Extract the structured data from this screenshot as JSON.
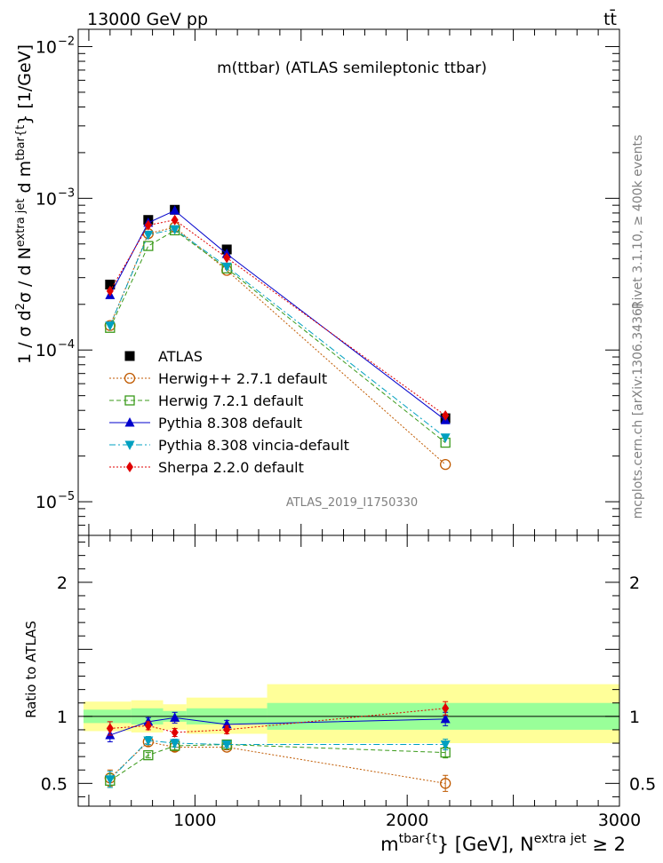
{
  "header": {
    "left": "13000 GeV pp",
    "right": "tt̄"
  },
  "side_labels": {
    "rivet": "Rivet 3.1.10, ≥ 400k events",
    "mcplots": "mcplots.cern.ch [arXiv:1306.3436]"
  },
  "analysis_id": "ATLAS_2019_I1750330",
  "chart_data": [
    {
      "type": "line",
      "panel": "main",
      "title": "m(ttbar) (ATLAS semileptonic ttbar)",
      "ylabel": {
        "a": "1 / σ d",
        "a_sup": "2",
        "b": "σ / d N",
        "b_sup": "extra jet",
        "c": " d m",
        "c_sup": "tbar{t",
        "d": "} [1/GeV]"
      },
      "yscale": "log",
      "xlim": [
        450,
        3000
      ],
      "ylim": [
        6e-06,
        0.013
      ],
      "ytick_labels": [
        {
          "value": 1e-05,
          "base": "10",
          "exp": "−5"
        },
        {
          "value": 0.0001,
          "base": "10",
          "exp": "−4"
        },
        {
          "value": 0.001,
          "base": "10",
          "exp": "−3"
        },
        {
          "value": 0.01,
          "base": "10",
          "exp": "−2"
        }
      ],
      "x": [
        600,
        780,
        905,
        1150,
        2180
      ],
      "bin_edges": [
        475,
        700,
        850,
        960,
        1340,
        3000
      ],
      "series": [
        {
          "name": "ATLAS",
          "style": "data",
          "color": "#000000",
          "marker": "square-filled",
          "values": [
            0.00027,
            0.00072,
            0.00084,
            0.00046,
            3.55e-05
          ]
        },
        {
          "name": "Herwig++ 2.7.1 default",
          "style": "dotted",
          "color": "#c05a00",
          "marker": "circle-open",
          "values": [
            0.000145,
            0.000585,
            0.000645,
            0.000335,
            1.76e-05
          ]
        },
        {
          "name": "Herwig 7.2.1 default",
          "style": "dashed",
          "color": "#3a9a1a",
          "marker": "square-open",
          "values": [
            0.00014,
            0.000485,
            0.000615,
            0.000345,
            2.45e-05
          ]
        },
        {
          "name": "Pythia 8.308 default",
          "style": "solid",
          "color": "#0000cc",
          "marker": "triangle-up",
          "values": [
            0.00023,
            0.00069,
            0.00083,
            0.00043,
            3.45e-05
          ]
        },
        {
          "name": "Pythia 8.308 vincia-default",
          "style": "dashdot",
          "color": "#00a0c0",
          "marker": "triangle-down",
          "values": [
            0.000145,
            0.000575,
            0.000625,
            0.000355,
            2.65e-05
          ]
        },
        {
          "name": "Sherpa 2.2.0 default",
          "style": "dotted",
          "color": "#e00000",
          "marker": "diamond",
          "values": [
            0.000245,
            0.000665,
            0.00072,
            0.000405,
            3.7e-05
          ]
        }
      ]
    },
    {
      "type": "line",
      "panel": "ratio",
      "ylabel": "Ratio to ATLAS",
      "xlabel": {
        "a": "m",
        "a_sup": "tbar{t",
        "b": "} [GeV], N",
        "b_sup": "extra jet",
        "c": " ≥ 2"
      },
      "xlim": [
        450,
        3000
      ],
      "ylim": [
        0.33,
        2.35
      ],
      "xtick_labels": [
        1000,
        2000,
        3000
      ],
      "ytick_labels": [
        0.5,
        1,
        2
      ],
      "x": [
        600,
        780,
        905,
        1150,
        2180
      ],
      "bands": [
        {
          "x0": 475,
          "x1": 700,
          "inner": [
            0.95,
            1.05
          ],
          "outer": [
            0.89,
            1.11
          ]
        },
        {
          "x0": 700,
          "x1": 850,
          "inner": [
            0.94,
            1.06
          ],
          "outer": [
            0.88,
            1.12
          ]
        },
        {
          "x0": 850,
          "x1": 960,
          "inner": [
            0.96,
            1.04
          ],
          "outer": [
            0.9,
            1.09
          ]
        },
        {
          "x0": 960,
          "x1": 1340,
          "inner": [
            0.94,
            1.06
          ],
          "outer": [
            0.87,
            1.14
          ]
        },
        {
          "x0": 1340,
          "x1": 3000,
          "inner": [
            0.9,
            1.1
          ],
          "outer": [
            0.8,
            1.24
          ]
        }
      ],
      "band_colors": {
        "inner": "#99ff99",
        "outer": "#ffff99"
      },
      "series": [
        {
          "name": "Herwig++ 2.7.1 default",
          "style": "dotted",
          "color": "#c05a00",
          "marker": "circle-open",
          "values": [
            0.54,
            0.81,
            0.77,
            0.77,
            0.5
          ],
          "errors": [
            0.06,
            0.03,
            0.03,
            0.02,
            0.06
          ]
        },
        {
          "name": "Herwig 7.2.1 default",
          "style": "dashed",
          "color": "#3a9a1a",
          "marker": "square-open",
          "values": [
            0.52,
            0.71,
            0.78,
            0.79,
            0.73
          ],
          "errors": [
            0.05,
            0.02,
            0.03,
            0.02,
            0.04
          ]
        },
        {
          "name": "Pythia 8.308 default",
          "style": "solid",
          "color": "#0000cc",
          "marker": "triangle-up",
          "values": [
            0.86,
            0.96,
            0.99,
            0.94,
            0.98
          ],
          "errors": [
            0.05,
            0.03,
            0.04,
            0.03,
            0.05
          ]
        },
        {
          "name": "Pythia 8.308 vincia-default",
          "style": "dashdot",
          "color": "#00a0c0",
          "marker": "triangle-down",
          "values": [
            0.53,
            0.82,
            0.8,
            0.79,
            0.79
          ],
          "errors": [
            0.06,
            0.03,
            0.03,
            0.02,
            0.04
          ]
        },
        {
          "name": "Sherpa 2.2.0 default",
          "style": "dotted",
          "color": "#e00000",
          "marker": "diamond",
          "values": [
            0.91,
            0.93,
            0.88,
            0.9,
            1.06
          ],
          "errors": [
            0.05,
            0.03,
            0.03,
            0.03,
            0.05
          ]
        }
      ]
    }
  ]
}
